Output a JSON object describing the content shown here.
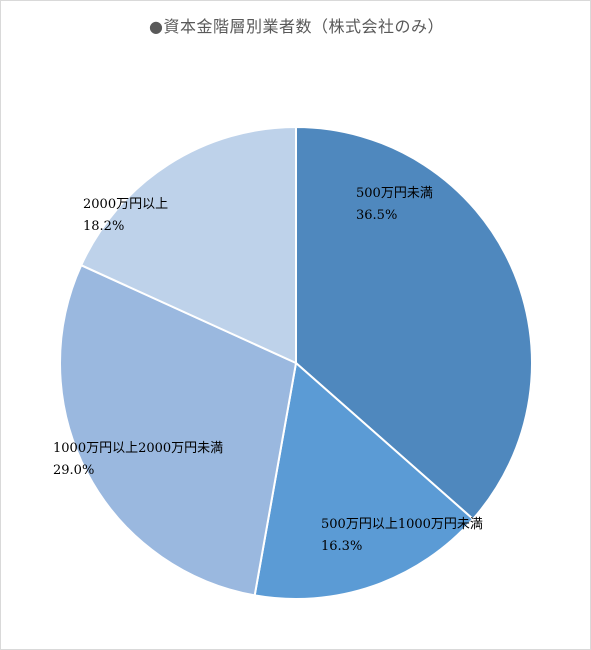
{
  "chart_data": {
    "type": "pie",
    "title": "●資本金階層別業者数（株式会社のみ）",
    "categories": [
      "500万円未満",
      "500万円以上1000万円未満",
      "1000万円以上2000万円未満",
      "2000万円以上"
    ],
    "values": [
      36.5,
      16.3,
      29.0,
      18.2
    ],
    "value_labels": [
      "36.5%",
      "16.3%",
      "29.0%",
      "18.2%"
    ],
    "colors": [
      "#4f88be",
      "#5b9bd5",
      "#9ab8df",
      "#bed2ea"
    ],
    "legend": "none"
  }
}
